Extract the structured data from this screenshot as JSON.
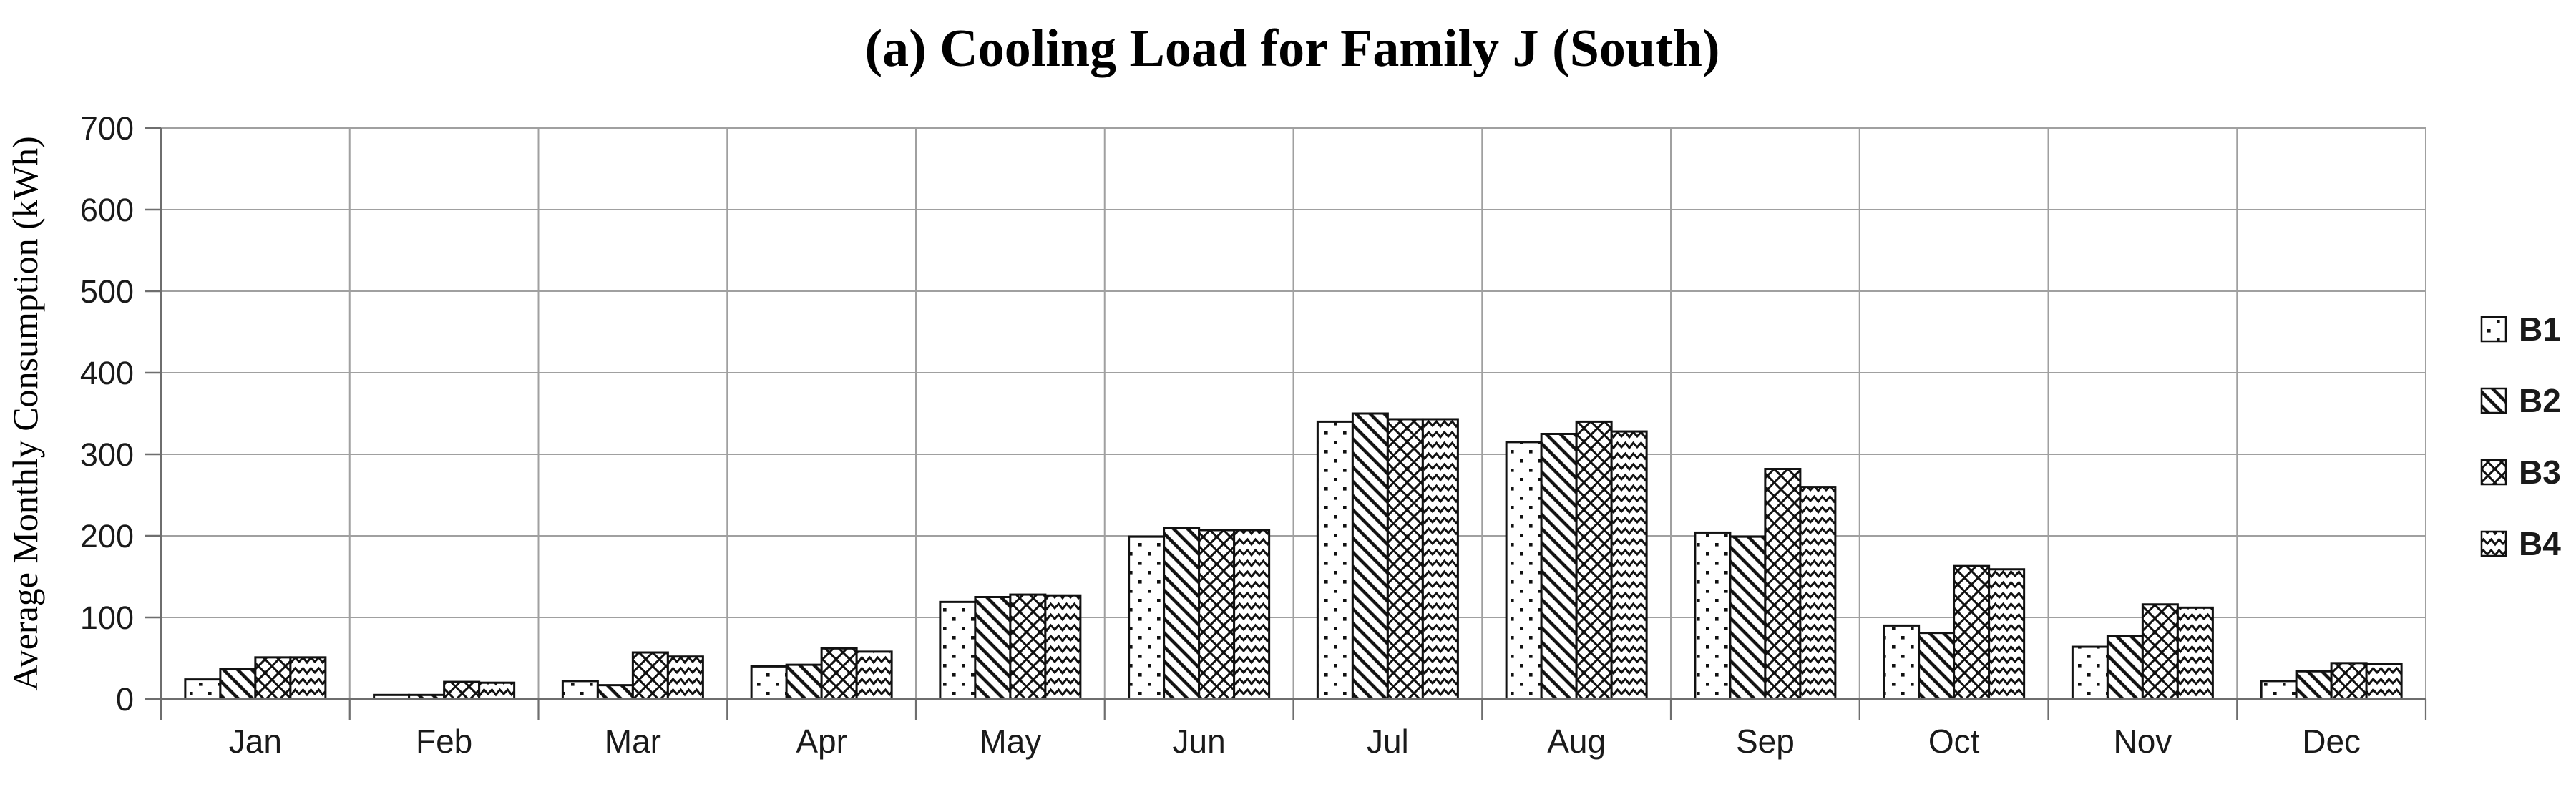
{
  "chart_data": {
    "type": "bar",
    "title": "(a) Cooling Load for Family J (South)",
    "xlabel": "",
    "ylabel": "Average Monthly Consumption (kWh)",
    "categories": [
      "Jan",
      "Feb",
      "Mar",
      "Apr",
      "May",
      "Jun",
      "Jul",
      "Aug",
      "Sep",
      "Oct",
      "Nov",
      "Dec"
    ],
    "series": [
      {
        "name": "B1",
        "pattern": "dots",
        "values": [
          24,
          5,
          22,
          40,
          119,
          199,
          340,
          315,
          204,
          90,
          64,
          22
        ]
      },
      {
        "name": "B2",
        "pattern": "diagonal-stripes",
        "values": [
          37,
          5,
          17,
          42,
          125,
          210,
          350,
          325,
          199,
          81,
          77,
          34
        ]
      },
      {
        "name": "B3",
        "pattern": "diagonal-crosshatch",
        "values": [
          51,
          21,
          57,
          62,
          128,
          207,
          343,
          340,
          282,
          163,
          116,
          44
        ]
      },
      {
        "name": "B4",
        "pattern": "zigzag",
        "values": [
          51,
          20,
          52,
          58,
          127,
          207,
          343,
          328,
          260,
          159,
          112,
          43
        ]
      }
    ],
    "ylim": [
      0,
      700
    ],
    "ytick_step": 100,
    "yticks": [
      0,
      100,
      200,
      300,
      400,
      500,
      600,
      700
    ],
    "grid": true,
    "legend_position": "right",
    "colors": {
      "background": "#ffffff",
      "bar_fill": "#ffffff",
      "bar_stroke": "#111111",
      "gridline": "#a0a0a0",
      "axis": "#6e6e6e",
      "text": "#1a1a1a"
    }
  }
}
